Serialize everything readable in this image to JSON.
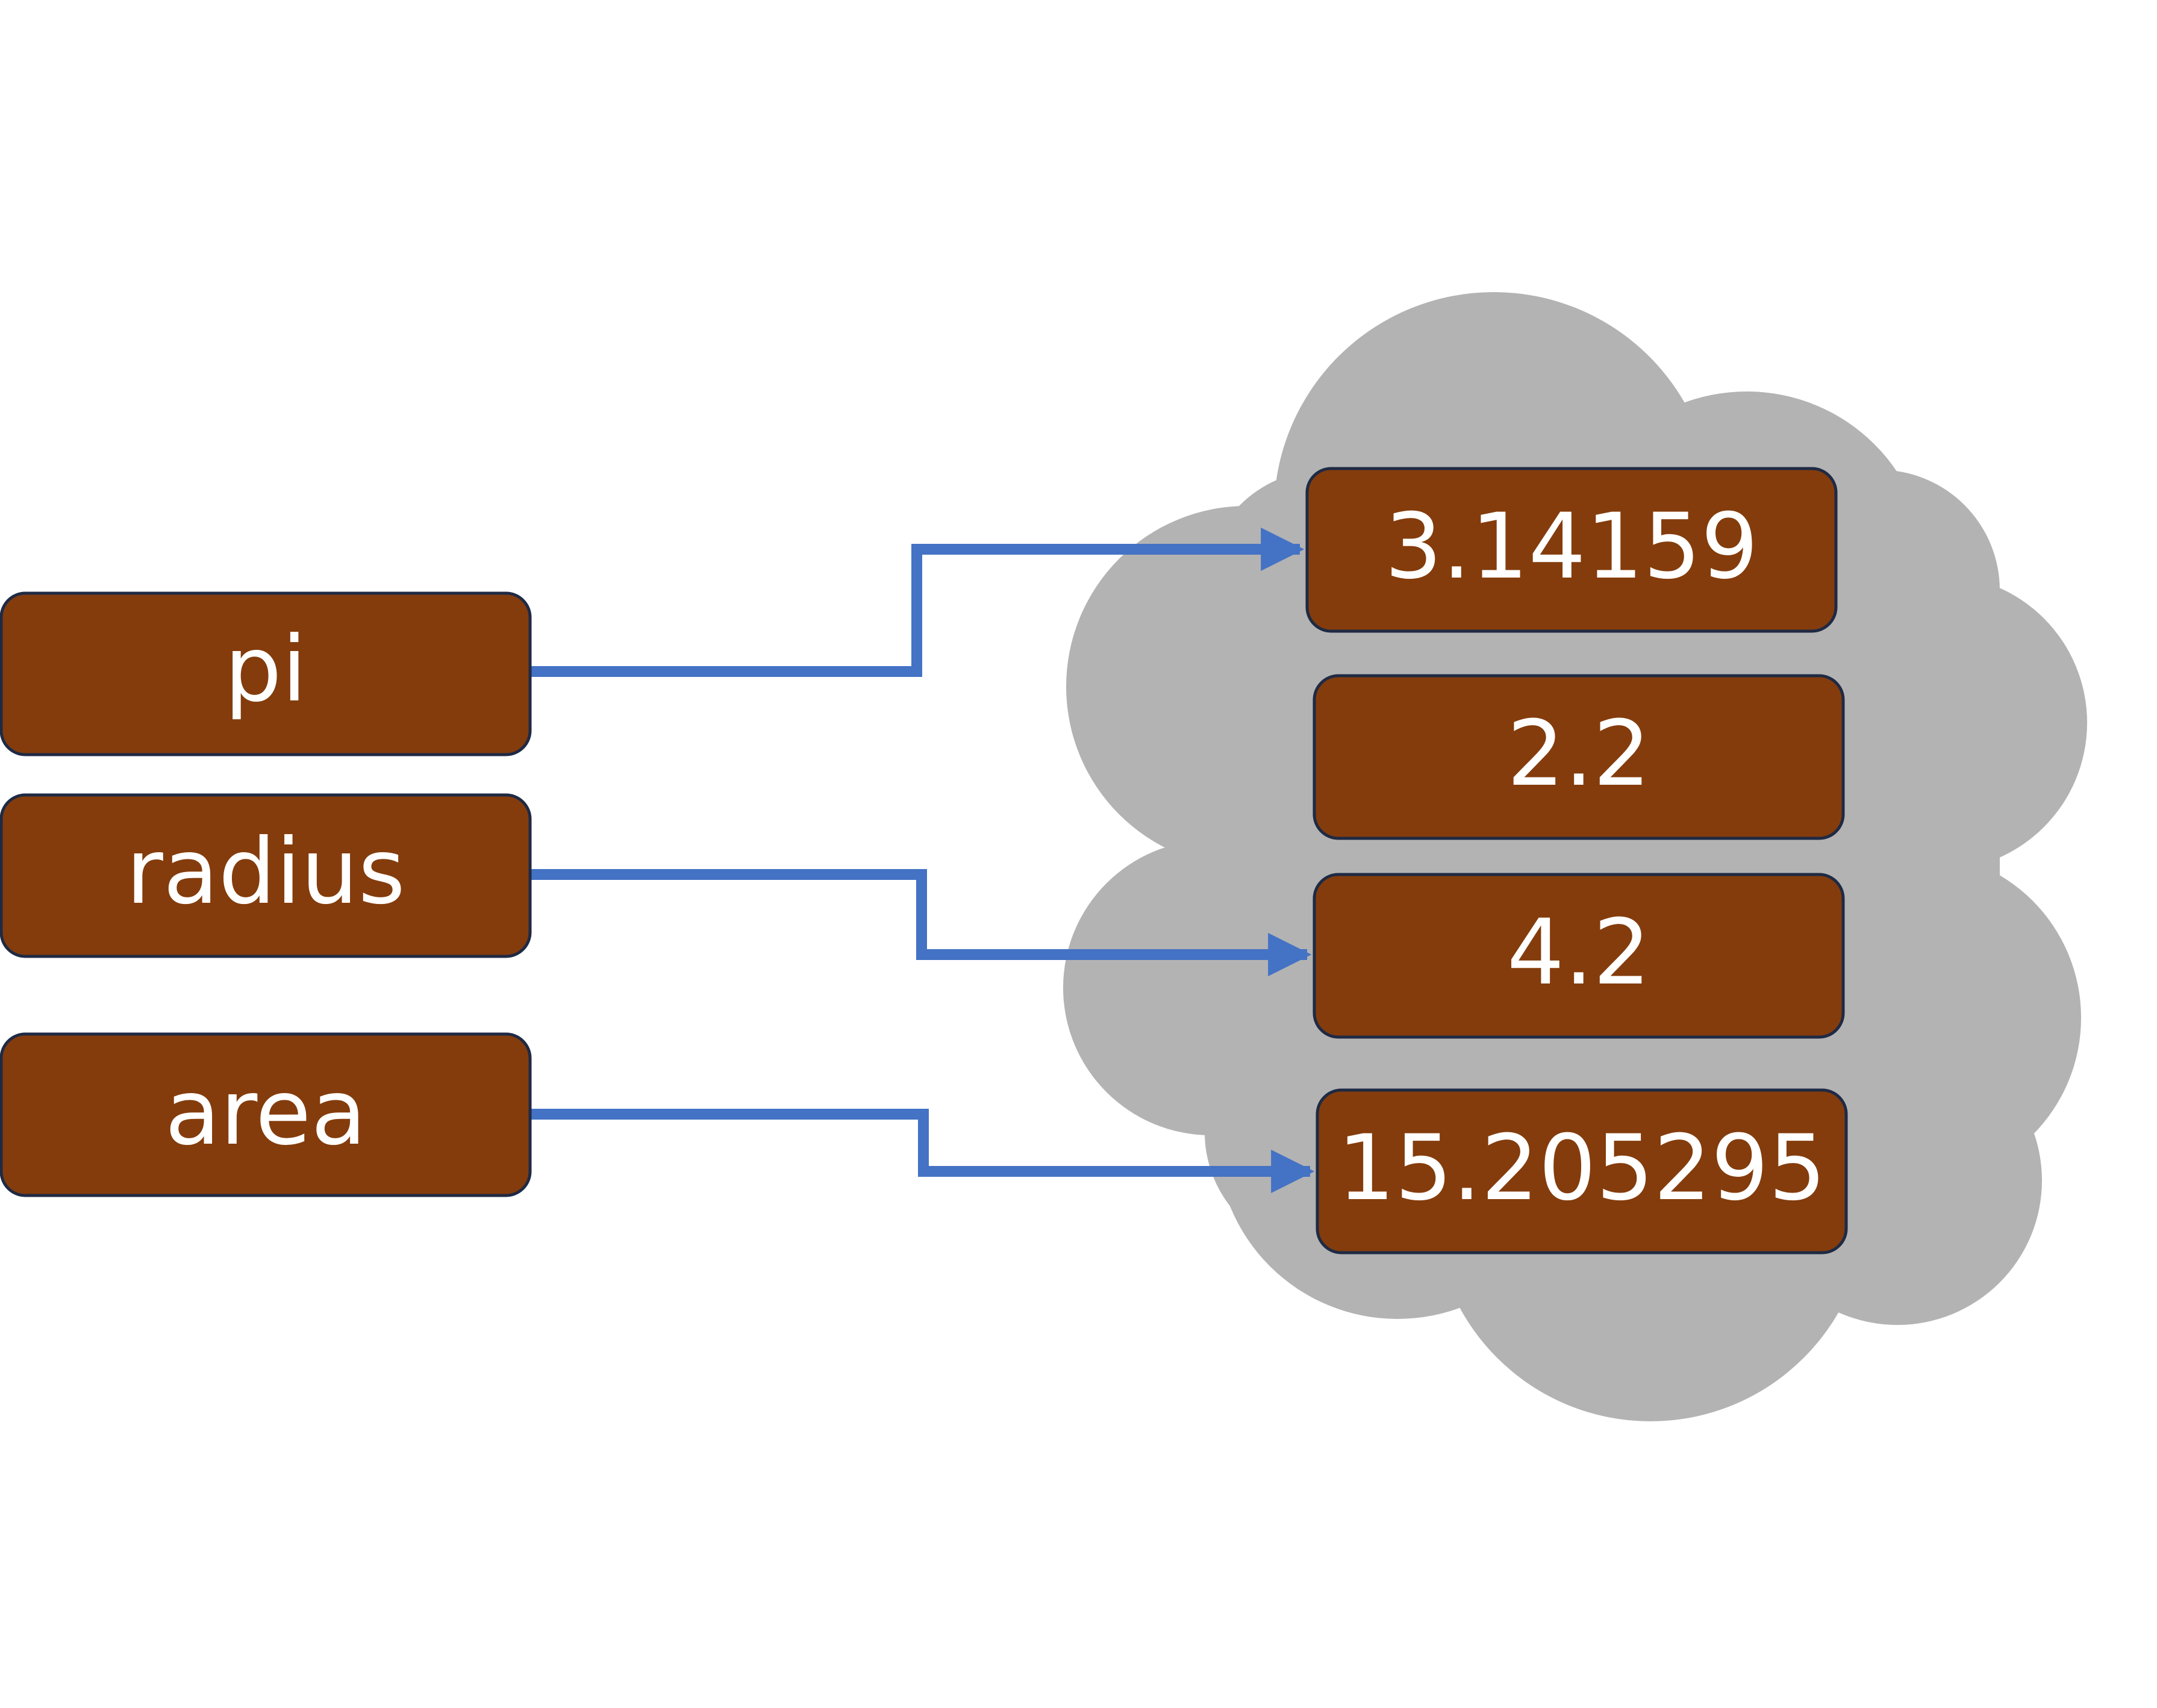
{
  "colors": {
    "box_fill": "#843C0C",
    "box_stroke": "#1F2A44",
    "box_text": "#FFFFFF",
    "arrow": "#4472C4",
    "cloud": "#B3B3B3",
    "background": "#FFFFFF"
  },
  "variables": [
    {
      "name": "pi"
    },
    {
      "name": "radius"
    },
    {
      "name": "area"
    }
  ],
  "values": [
    {
      "value": "3.14159"
    },
    {
      "value": "2.2"
    },
    {
      "value": "4.2"
    },
    {
      "value": "15.205295"
    }
  ],
  "references": [
    {
      "from": "pi",
      "to": "3.14159"
    },
    {
      "from": "radius",
      "to": "4.2"
    },
    {
      "from": "area",
      "to": "15.205295"
    }
  ]
}
